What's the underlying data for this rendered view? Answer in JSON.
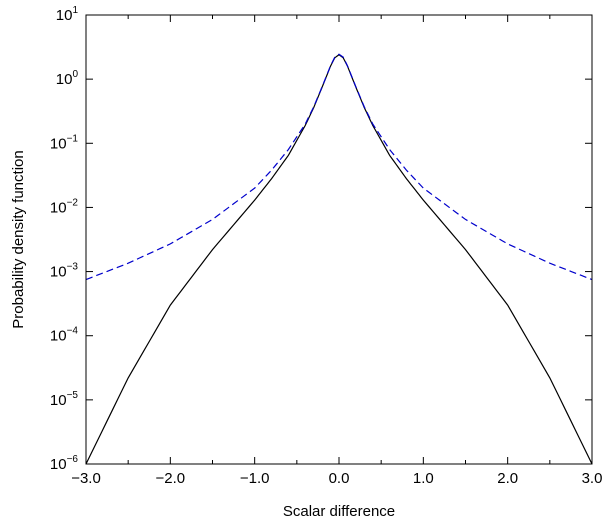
{
  "chart_data": {
    "type": "line",
    "title": "",
    "xlabel": "Scalar difference",
    "ylabel": "Probability density function",
    "xlim": [
      -3.0,
      3.0
    ],
    "ylim": [
      1e-06,
      10
    ],
    "yscale": "log",
    "grid": false,
    "legend": "none",
    "x_ticks": [
      {
        "value": -3.0,
        "label": "−3.0"
      },
      {
        "value": -2.0,
        "label": "−2.0"
      },
      {
        "value": -1.0,
        "label": "−1.0"
      },
      {
        "value": 0.0,
        "label": "0.0"
      },
      {
        "value": 1.0,
        "label": "1.0"
      },
      {
        "value": 2.0,
        "label": "2.0"
      },
      {
        "value": 3.0,
        "label": "3.0"
      }
    ],
    "y_ticks": [
      {
        "value": 1e-06,
        "base": "10",
        "exp": "−6"
      },
      {
        "value": 1e-05,
        "base": "10",
        "exp": "−5"
      },
      {
        "value": 0.0001,
        "base": "10",
        "exp": "−4"
      },
      {
        "value": 0.001,
        "base": "10",
        "exp": "−3"
      },
      {
        "value": 0.01,
        "base": "10",
        "exp": "−2"
      },
      {
        "value": 0.1,
        "base": "10",
        "exp": "−1"
      },
      {
        "value": 1,
        "base": "10",
        "exp": "0"
      },
      {
        "value": 10,
        "base": "10",
        "exp": "1"
      }
    ],
    "series": [
      {
        "color": "#000000",
        "style": "solid",
        "x": [
          -3.0,
          -2.5,
          -2.0,
          -1.5,
          -1.0,
          -0.8,
          -0.6,
          -0.4,
          -0.3,
          -0.2,
          -0.1,
          -0.05,
          0.0,
          0.05,
          0.1,
          0.2,
          0.3,
          0.4,
          0.6,
          0.8,
          1.0,
          1.5,
          2.0,
          2.5,
          3.0
        ],
        "y": [
          1e-06,
          2.2e-05,
          0.0003,
          0.0022,
          0.013,
          0.028,
          0.065,
          0.19,
          0.36,
          0.75,
          1.6,
          2.15,
          2.4,
          2.15,
          1.6,
          0.75,
          0.36,
          0.19,
          0.065,
          0.028,
          0.013,
          0.0022,
          0.0003,
          2.2e-05,
          1e-06
        ]
      },
      {
        "color": "#0000cc",
        "style": "dashed",
        "x": [
          -3.0,
          -2.5,
          -2.0,
          -1.5,
          -1.0,
          -0.8,
          -0.6,
          -0.4,
          -0.3,
          -0.2,
          -0.1,
          -0.05,
          0.0,
          0.05,
          0.1,
          0.2,
          0.3,
          0.4,
          0.6,
          0.8,
          1.0,
          1.5,
          2.0,
          2.5,
          3.0
        ],
        "y": [
          0.00075,
          0.00135,
          0.0027,
          0.0065,
          0.02,
          0.038,
          0.08,
          0.2,
          0.37,
          0.76,
          1.62,
          2.2,
          2.45,
          2.2,
          1.62,
          0.76,
          0.37,
          0.2,
          0.08,
          0.038,
          0.02,
          0.0065,
          0.0027,
          0.00135,
          0.00075
        ]
      }
    ]
  }
}
